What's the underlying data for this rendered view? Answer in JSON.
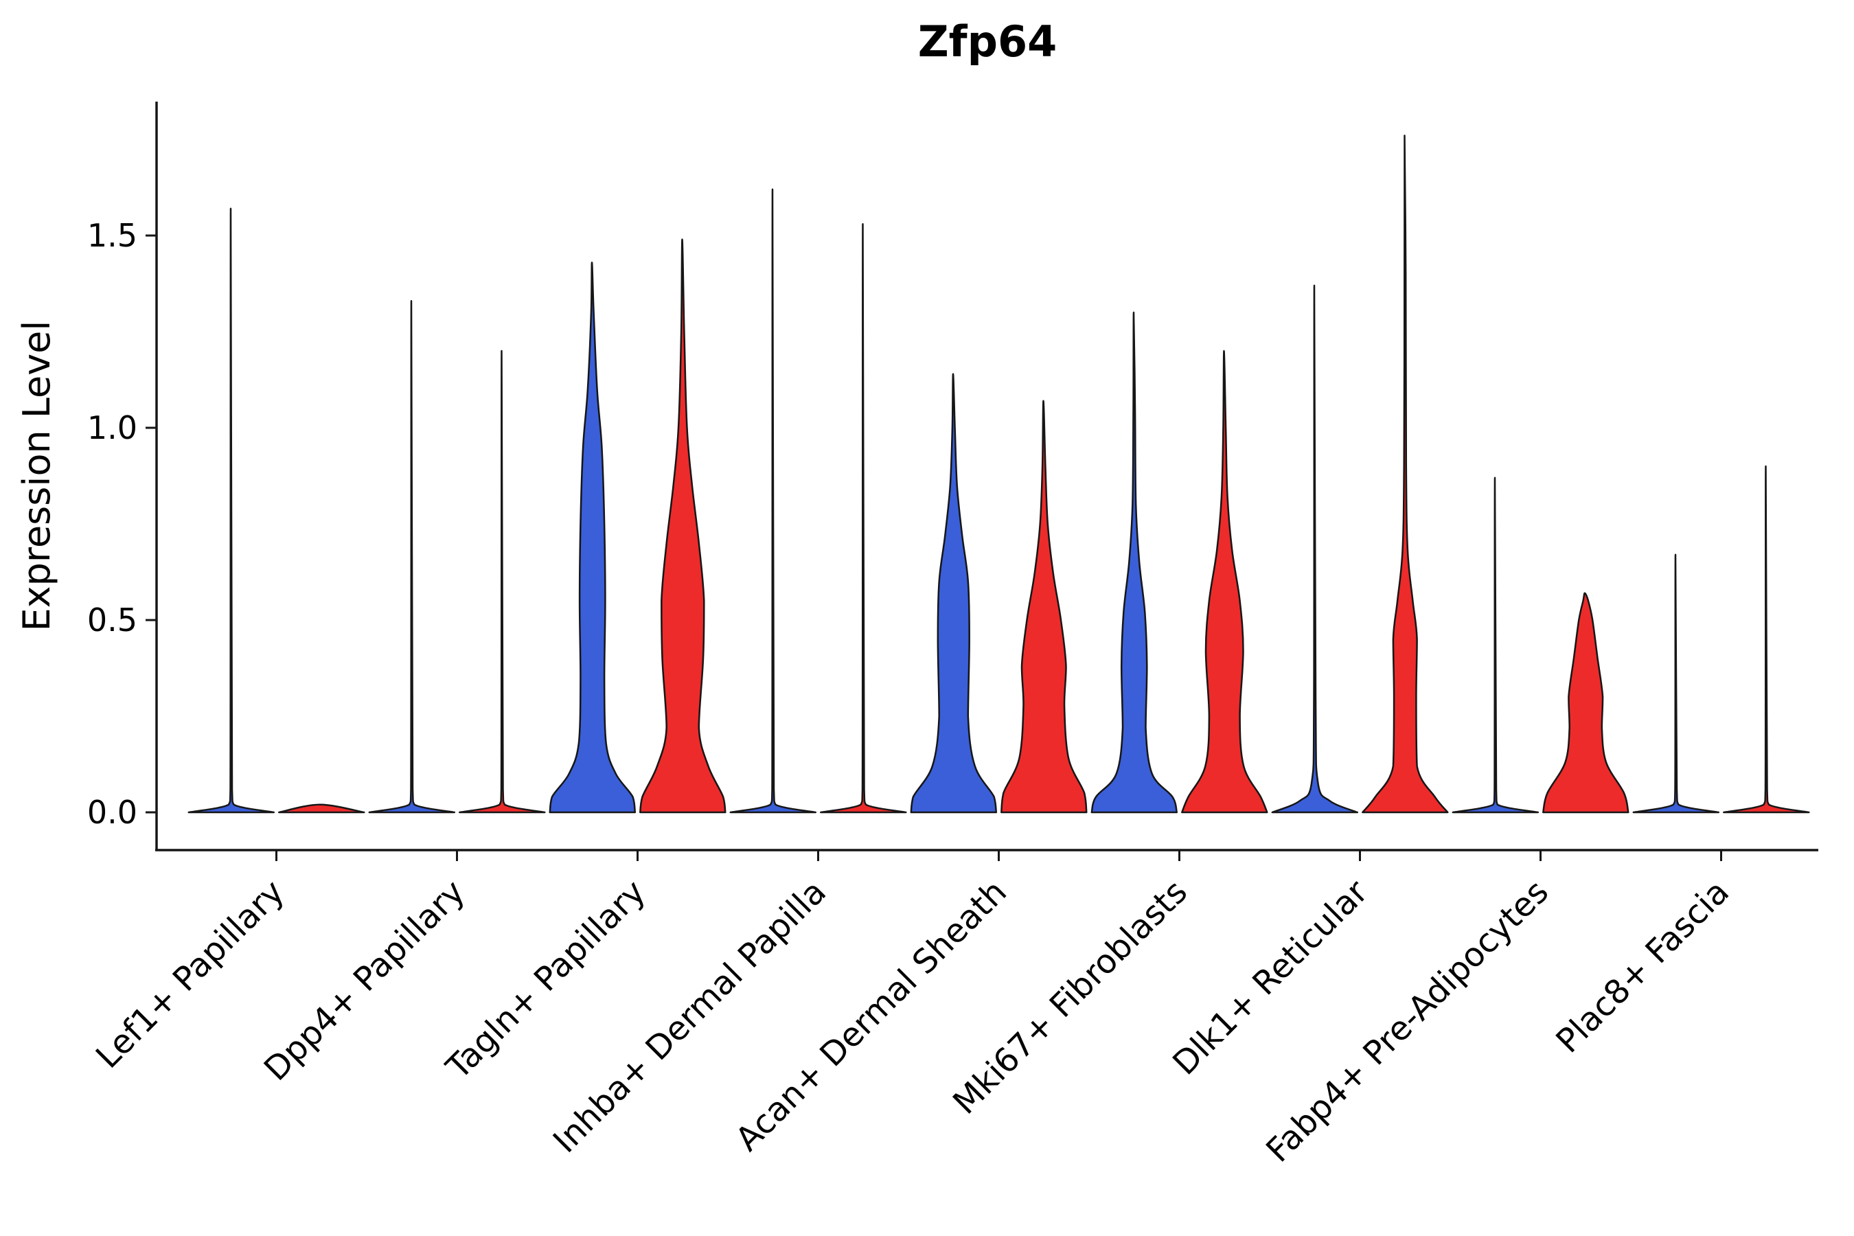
{
  "chart_data": {
    "type": "violin",
    "title": "Zfp64",
    "ylabel": "Expression Level",
    "xlabel": "",
    "yticks": [
      "0.0",
      "0.5",
      "1.0",
      "1.5"
    ],
    "ytick_values": [
      0,
      0.5,
      1.0,
      1.5
    ],
    "ylim": [
      0,
      1.84
    ],
    "legend": "none",
    "grid": false,
    "colors": {
      "blue": "#3A5FD8",
      "red": "#ED2B2B",
      "outline": "#161616"
    },
    "categories": [
      {
        "label": "Lef1+ Papillary",
        "violins": [
          {
            "group": "blue",
            "max": 1.57,
            "profile": [
              [
                0,
                1.0
              ],
              [
                0.02,
                0.06
              ],
              [
                0.06,
                0.02
              ],
              [
                1.57,
                0.012
              ]
            ]
          },
          {
            "group": "red",
            "max": 0.02,
            "profile": [
              [
                0,
                1.0
              ],
              [
                0.02,
                0.04
              ]
            ]
          }
        ]
      },
      {
        "label": "Dpp4+ Papillary",
        "violins": [
          {
            "group": "blue",
            "max": 1.33,
            "profile": [
              [
                0,
                1.0
              ],
              [
                0.02,
                0.06
              ],
              [
                0.06,
                0.02
              ],
              [
                1.33,
                0.012
              ]
            ]
          },
          {
            "group": "red",
            "max": 1.2,
            "profile": [
              [
                0,
                1.0
              ],
              [
                0.02,
                0.06
              ],
              [
                0.06,
                0.02
              ],
              [
                1.2,
                0.012
              ]
            ]
          }
        ]
      },
      {
        "label": "Tagln+ Papillary",
        "violins": [
          {
            "group": "blue",
            "max": 1.43,
            "profile": [
              [
                0,
                1.0
              ],
              [
                0.04,
                0.95
              ],
              [
                0.1,
                0.55
              ],
              [
                0.18,
                0.32
              ],
              [
                0.35,
                0.28
              ],
              [
                0.55,
                0.3
              ],
              [
                0.75,
                0.28
              ],
              [
                0.95,
                0.22
              ],
              [
                1.1,
                0.11
              ],
              [
                1.3,
                0.03
              ],
              [
                1.43,
                0.012
              ]
            ]
          },
          {
            "group": "red",
            "max": 1.49,
            "profile": [
              [
                0,
                1.0
              ],
              [
                0.04,
                0.95
              ],
              [
                0.12,
                0.6
              ],
              [
                0.22,
                0.38
              ],
              [
                0.4,
                0.48
              ],
              [
                0.55,
                0.5
              ],
              [
                0.7,
                0.38
              ],
              [
                0.85,
                0.22
              ],
              [
                1.0,
                0.1
              ],
              [
                1.25,
                0.035
              ],
              [
                1.49,
                0.012
              ]
            ]
          }
        ]
      },
      {
        "label": "Inhba+ Dermal Papilla",
        "violins": [
          {
            "group": "blue",
            "max": 1.62,
            "profile": [
              [
                0,
                1.0
              ],
              [
                0.02,
                0.06
              ],
              [
                0.06,
                0.02
              ],
              [
                1.62,
                0.012
              ]
            ]
          },
          {
            "group": "red",
            "max": 1.53,
            "profile": [
              [
                0,
                1.0
              ],
              [
                0.02,
                0.06
              ],
              [
                0.06,
                0.02
              ],
              [
                1.53,
                0.012
              ]
            ]
          }
        ]
      },
      {
        "label": "Acan+ Dermal Sheath",
        "violins": [
          {
            "group": "blue",
            "max": 1.14,
            "profile": [
              [
                0,
                1.0
              ],
              [
                0.04,
                0.95
              ],
              [
                0.12,
                0.5
              ],
              [
                0.25,
                0.34
              ],
              [
                0.45,
                0.37
              ],
              [
                0.6,
                0.34
              ],
              [
                0.72,
                0.2
              ],
              [
                0.85,
                0.08
              ],
              [
                1.0,
                0.03
              ],
              [
                1.14,
                0.012
              ]
            ]
          },
          {
            "group": "red",
            "max": 1.07,
            "profile": [
              [
                0,
                1.0
              ],
              [
                0.05,
                0.95
              ],
              [
                0.14,
                0.58
              ],
              [
                0.28,
                0.48
              ],
              [
                0.38,
                0.52
              ],
              [
                0.5,
                0.4
              ],
              [
                0.62,
                0.22
              ],
              [
                0.75,
                0.09
              ],
              [
                0.9,
                0.035
              ],
              [
                1.07,
                0.012
              ]
            ]
          }
        ]
      },
      {
        "label": "Mki67+ Fibroblasts",
        "violins": [
          {
            "group": "blue",
            "max": 1.3,
            "profile": [
              [
                0,
                1.0
              ],
              [
                0.04,
                0.9
              ],
              [
                0.1,
                0.42
              ],
              [
                0.22,
                0.27
              ],
              [
                0.38,
                0.3
              ],
              [
                0.52,
                0.25
              ],
              [
                0.65,
                0.12
              ],
              [
                0.8,
                0.04
              ],
              [
                1.05,
                0.02
              ],
              [
                1.3,
                0.012
              ]
            ]
          },
          {
            "group": "red",
            "max": 1.2,
            "profile": [
              [
                0,
                1.0
              ],
              [
                0.04,
                0.85
              ],
              [
                0.12,
                0.45
              ],
              [
                0.25,
                0.36
              ],
              [
                0.42,
                0.44
              ],
              [
                0.55,
                0.36
              ],
              [
                0.68,
                0.18
              ],
              [
                0.82,
                0.07
              ],
              [
                1.0,
                0.03
              ],
              [
                1.2,
                0.012
              ]
            ]
          }
        ]
      },
      {
        "label": "Dlk1+ Reticular",
        "violins": [
          {
            "group": "blue",
            "max": 1.37,
            "profile": [
              [
                0,
                1.0
              ],
              [
                0.03,
                0.35
              ],
              [
                0.08,
                0.07
              ],
              [
                0.3,
                0.02
              ],
              [
                1.37,
                0.012
              ]
            ]
          },
          {
            "group": "red",
            "max": 1.76,
            "profile": [
              [
                0,
                1.0
              ],
              [
                0.04,
                0.7
              ],
              [
                0.12,
                0.28
              ],
              [
                0.3,
                0.26
              ],
              [
                0.45,
                0.28
              ],
              [
                0.55,
                0.18
              ],
              [
                0.68,
                0.06
              ],
              [
                0.9,
                0.025
              ],
              [
                1.4,
                0.015
              ],
              [
                1.76,
                0.012
              ]
            ]
          }
        ]
      },
      {
        "label": "Fabp4+ Pre-Adipocytes",
        "violins": [
          {
            "group": "blue",
            "max": 0.87,
            "profile": [
              [
                0,
                1.0
              ],
              [
                0.02,
                0.05
              ],
              [
                0.06,
                0.02
              ],
              [
                0.87,
                0.012
              ]
            ]
          },
          {
            "group": "red",
            "max": 0.57,
            "profile": [
              [
                0,
                1.0
              ],
              [
                0.05,
                0.9
              ],
              [
                0.13,
                0.48
              ],
              [
                0.22,
                0.38
              ],
              [
                0.3,
                0.4
              ],
              [
                0.4,
                0.28
              ],
              [
                0.5,
                0.16
              ],
              [
                0.55,
                0.06
              ],
              [
                0.57,
                0.02
              ]
            ]
          }
        ]
      },
      {
        "label": "Plac8+ Fascia",
        "violins": [
          {
            "group": "blue",
            "max": 0.67,
            "profile": [
              [
                0,
                1.0
              ],
              [
                0.02,
                0.06
              ],
              [
                0.06,
                0.02
              ],
              [
                0.67,
                0.012
              ]
            ]
          },
          {
            "group": "red",
            "max": 0.9,
            "profile": [
              [
                0,
                1.0
              ],
              [
                0.02,
                0.06
              ],
              [
                0.06,
                0.02
              ],
              [
                0.9,
                0.012
              ]
            ]
          }
        ]
      }
    ]
  }
}
